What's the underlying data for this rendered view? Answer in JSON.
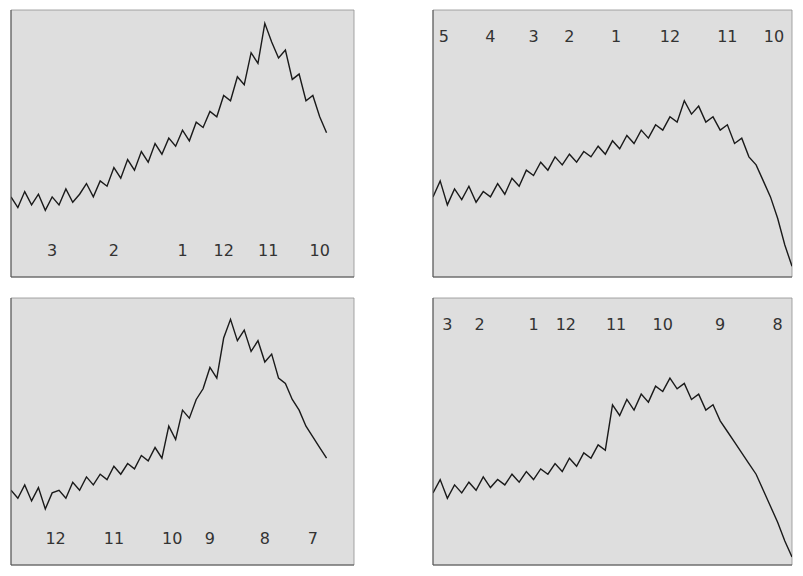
{
  "chart_data": [
    {
      "type": "line",
      "color": "#1a1a1a",
      "grid": true,
      "tick_labels": false,
      "xlim": [
        0,
        100
      ],
      "ylim": [
        0,
        100
      ],
      "xticks": [
        0,
        10,
        20,
        30,
        40,
        50,
        60,
        70,
        80,
        90,
        100
      ],
      "yticks": [
        0,
        20,
        40,
        60,
        80,
        100
      ],
      "x": [
        0,
        2,
        4,
        6,
        8,
        10,
        12,
        14,
        16,
        18,
        20,
        22,
        24,
        26,
        28,
        30,
        32,
        34,
        36,
        38,
        40,
        42,
        44,
        46,
        48,
        50,
        52,
        54,
        56,
        58,
        60,
        62,
        64,
        66,
        68,
        70,
        72,
        74,
        76,
        78,
        80,
        82,
        84,
        86,
        88,
        90,
        92
      ],
      "values": [
        30,
        26,
        32,
        27,
        31,
        25,
        30,
        27,
        33,
        28,
        31,
        35,
        30,
        36,
        34,
        41,
        37,
        44,
        40,
        47,
        43,
        50,
        46,
        52,
        49,
        55,
        51,
        58,
        56,
        62,
        60,
        68,
        66,
        75,
        72,
        84,
        80,
        95,
        88,
        82,
        85,
        74,
        76,
        66,
        68,
        60,
        54
      ],
      "annotations": [
        {
          "x": 12,
          "y": 10,
          "text": "3"
        },
        {
          "x": 30,
          "y": 10,
          "text": "2"
        },
        {
          "x": 50,
          "y": 10,
          "text": "1"
        },
        {
          "x": 62,
          "y": 10,
          "text": "12"
        },
        {
          "x": 75,
          "y": 10,
          "text": "11"
        },
        {
          "x": 90,
          "y": 10,
          "text": "10"
        }
      ]
    },
    {
      "type": "line",
      "color": "#1a1a1a",
      "grid": true,
      "tick_labels": false,
      "xlim": [
        0,
        100
      ],
      "ylim": [
        0,
        100
      ],
      "xticks": [
        0,
        10,
        20,
        30,
        40,
        50,
        60,
        70,
        80,
        90,
        100
      ],
      "yticks": [
        0,
        20,
        40,
        60,
        80,
        100
      ],
      "x": [
        0,
        2,
        4,
        6,
        8,
        10,
        12,
        14,
        16,
        18,
        20,
        22,
        24,
        26,
        28,
        30,
        32,
        34,
        36,
        38,
        40,
        42,
        44,
        46,
        48,
        50,
        52,
        54,
        56,
        58,
        60,
        62,
        64,
        66,
        68,
        70,
        72,
        74,
        76,
        78,
        80,
        82,
        84,
        86,
        88,
        90,
        92,
        94,
        96,
        98,
        100
      ],
      "values": [
        30,
        36,
        27,
        33,
        29,
        34,
        28,
        32,
        30,
        35,
        31,
        37,
        34,
        40,
        38,
        43,
        40,
        45,
        42,
        46,
        43,
        47,
        45,
        49,
        46,
        51,
        48,
        53,
        50,
        55,
        52,
        57,
        55,
        60,
        58,
        66,
        61,
        64,
        58,
        60,
        55,
        57,
        50,
        52,
        45,
        42,
        36,
        30,
        22,
        12,
        4
      ],
      "annotations": [
        {
          "x": 3,
          "y": 90,
          "text": "5"
        },
        {
          "x": 16,
          "y": 90,
          "text": "4"
        },
        {
          "x": 28,
          "y": 90,
          "text": "3"
        },
        {
          "x": 38,
          "y": 90,
          "text": "2"
        },
        {
          "x": 51,
          "y": 90,
          "text": "1"
        },
        {
          "x": 66,
          "y": 90,
          "text": "12"
        },
        {
          "x": 82,
          "y": 90,
          "text": "11"
        },
        {
          "x": 95,
          "y": 90,
          "text": "10"
        }
      ]
    },
    {
      "type": "line",
      "color": "#1a1a1a",
      "grid": true,
      "tick_labels": false,
      "xlim": [
        0,
        100
      ],
      "ylim": [
        0,
        100
      ],
      "xticks": [
        0,
        10,
        20,
        30,
        40,
        50,
        60,
        70,
        80,
        90,
        100
      ],
      "yticks": [
        0,
        20,
        40,
        60,
        80,
        100
      ],
      "x": [
        0,
        2,
        4,
        6,
        8,
        10,
        12,
        14,
        16,
        18,
        20,
        22,
        24,
        26,
        28,
        30,
        32,
        34,
        36,
        38,
        40,
        42,
        44,
        46,
        48,
        50,
        52,
        54,
        56,
        58,
        60,
        62,
        64,
        66,
        68,
        70,
        72,
        74,
        76,
        78,
        80,
        82,
        84,
        86,
        88,
        90,
        92
      ],
      "values": [
        28,
        25,
        30,
        24,
        29,
        21,
        27,
        28,
        25,
        31,
        28,
        33,
        30,
        34,
        32,
        37,
        34,
        38,
        36,
        41,
        39,
        44,
        40,
        52,
        47,
        58,
        55,
        62,
        66,
        74,
        70,
        85,
        92,
        84,
        88,
        80,
        84,
        76,
        79,
        70,
        68,
        62,
        58,
        52,
        48,
        44,
        40
      ],
      "annotations": [
        {
          "x": 13,
          "y": 10,
          "text": "12"
        },
        {
          "x": 30,
          "y": 10,
          "text": "11"
        },
        {
          "x": 47,
          "y": 10,
          "text": "10"
        },
        {
          "x": 58,
          "y": 10,
          "text": "9"
        },
        {
          "x": 74,
          "y": 10,
          "text": "8"
        },
        {
          "x": 88,
          "y": 10,
          "text": "7"
        }
      ]
    },
    {
      "type": "line",
      "color": "#1a1a1a",
      "grid": true,
      "tick_labels": false,
      "xlim": [
        0,
        100
      ],
      "ylim": [
        0,
        100
      ],
      "xticks": [
        0,
        10,
        20,
        30,
        40,
        50,
        60,
        70,
        80,
        90,
        100
      ],
      "yticks": [
        0,
        20,
        40,
        60,
        80,
        100
      ],
      "x": [
        0,
        2,
        4,
        6,
        8,
        10,
        12,
        14,
        16,
        18,
        20,
        22,
        24,
        26,
        28,
        30,
        32,
        34,
        36,
        38,
        40,
        42,
        44,
        46,
        48,
        50,
        52,
        54,
        56,
        58,
        60,
        62,
        64,
        66,
        68,
        70,
        72,
        74,
        76,
        78,
        80,
        82,
        84,
        86,
        88,
        90,
        92,
        94,
        96,
        98,
        100
      ],
      "values": [
        27,
        32,
        25,
        30,
        27,
        31,
        28,
        33,
        29,
        32,
        30,
        34,
        31,
        35,
        32,
        36,
        34,
        38,
        35,
        40,
        37,
        42,
        40,
        45,
        43,
        60,
        56,
        62,
        58,
        64,
        61,
        67,
        65,
        70,
        66,
        68,
        62,
        64,
        58,
        60,
        54,
        50,
        46,
        42,
        38,
        34,
        28,
        22,
        16,
        9,
        3
      ],
      "annotations": [
        {
          "x": 4,
          "y": 90,
          "text": "3"
        },
        {
          "x": 13,
          "y": 90,
          "text": "2"
        },
        {
          "x": 28,
          "y": 90,
          "text": "1"
        },
        {
          "x": 37,
          "y": 90,
          "text": "12"
        },
        {
          "x": 51,
          "y": 90,
          "text": "11"
        },
        {
          "x": 64,
          "y": 90,
          "text": "10"
        },
        {
          "x": 80,
          "y": 90,
          "text": "9"
        },
        {
          "x": 96,
          "y": 90,
          "text": "8"
        }
      ]
    }
  ]
}
